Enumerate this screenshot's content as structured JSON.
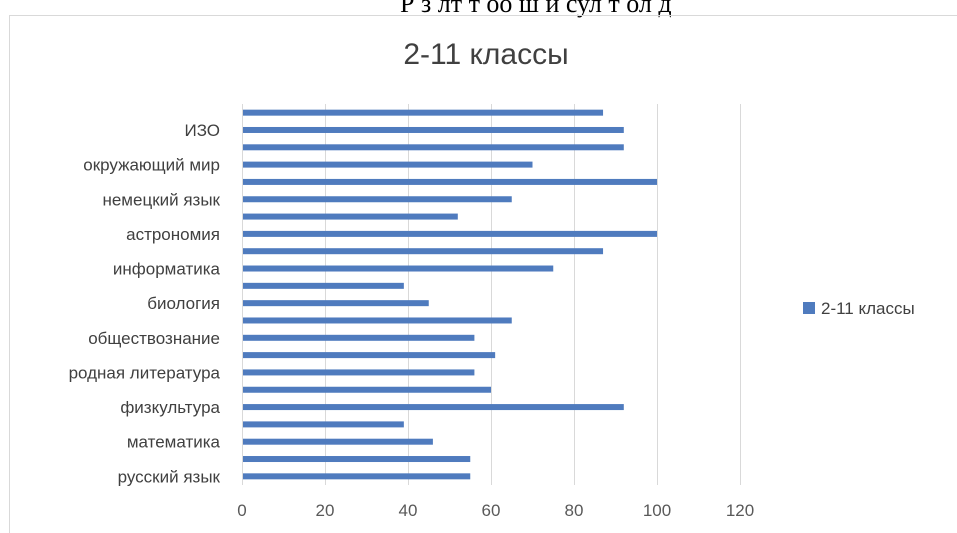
{
  "page": {
    "top_cut_text": "Р з лт т    оо ш  и  сул  т  ол    д "
  },
  "chart_data": {
    "type": "bar",
    "orientation": "horizontal",
    "title": "2-11 классы",
    "xlabel": "",
    "ylabel": "",
    "xlim": [
      0,
      120
    ],
    "x_ticks": [
      0,
      20,
      40,
      60,
      80,
      100,
      120
    ],
    "grid": "vertical",
    "legend_position": "right",
    "categories": [
      "русский язык",
      "",
      "математика",
      "",
      "физкультура",
      "",
      "родная литература",
      "",
      "обществознание",
      "",
      "биология",
      "",
      "информатика",
      "",
      "астрономия",
      "",
      "немецкий язык",
      "",
      "окружающий мир",
      "",
      "ИЗО",
      ""
    ],
    "series": [
      {
        "name": "2-11 классы",
        "color": "#4f7bbe",
        "values": [
          55,
          55,
          46,
          39,
          92,
          60,
          56,
          61,
          56,
          65,
          45,
          39,
          75,
          87,
          100,
          52,
          65,
          100,
          70,
          92,
          92,
          87
        ]
      }
    ]
  }
}
